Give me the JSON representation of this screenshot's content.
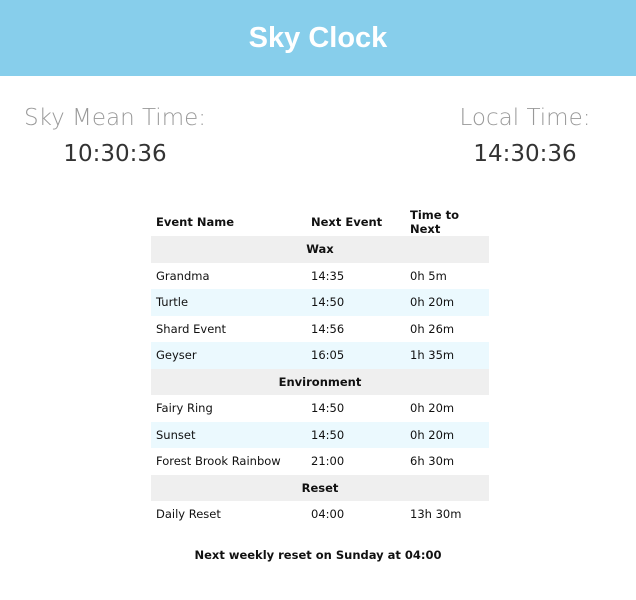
{
  "header": {
    "title": "Sky Clock",
    "color": "#87ceeb"
  },
  "clocks": {
    "sky": {
      "label": "Sky Mean Time:",
      "value": "10:30:36"
    },
    "local": {
      "label": "Local Time:",
      "value": "14:30:36"
    }
  },
  "table": {
    "columns": [
      "Event Name",
      "Next Event",
      "Time to Next"
    ],
    "sections": [
      {
        "name": "Wax",
        "rows": [
          [
            "Grandma",
            "14:35",
            "0h 5m"
          ],
          [
            "Turtle",
            "14:50",
            "0h 20m"
          ],
          [
            "Shard Event",
            "14:56",
            "0h 26m"
          ],
          [
            "Geyser",
            "16:05",
            "1h 35m"
          ]
        ]
      },
      {
        "name": "Environment",
        "rows": [
          [
            "Fairy Ring",
            "14:50",
            "0h 20m"
          ],
          [
            "Sunset",
            "14:50",
            "0h 20m"
          ],
          [
            "Forest Brook Rainbow",
            "21:00",
            "6h 30m"
          ]
        ]
      },
      {
        "name": "Reset",
        "rows": [
          [
            "Daily Reset",
            "04:00",
            "13h 30m"
          ]
        ]
      }
    ]
  },
  "footer": {
    "text": "Next weekly reset on Sunday at 04:00"
  }
}
